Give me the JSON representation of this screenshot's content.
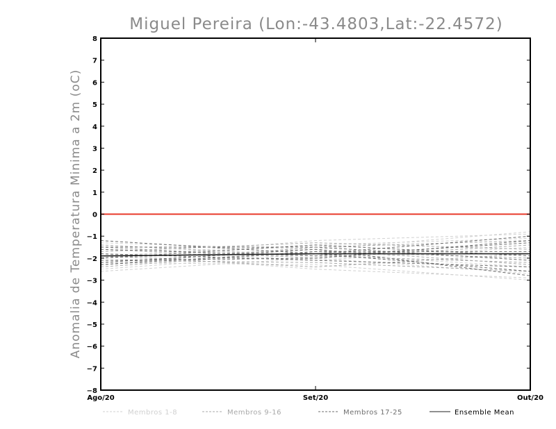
{
  "chart_data": {
    "type": "line",
    "title": "Miguel Pereira (Lon:-43.4803,Lat:-22.4572)",
    "xlabel": "",
    "ylabel": "Anomalia de Temperatura Minima a 2m (oC)",
    "categories": [
      "Ago/20",
      "Set/20",
      "Out/20"
    ],
    "ylim": [
      -8,
      8
    ],
    "yticks": [
      -8,
      -7,
      -6,
      -5,
      -4,
      -3,
      -2,
      -1,
      0,
      1,
      2,
      3,
      4,
      5,
      6,
      7,
      8
    ],
    "reference_line": {
      "value": 0,
      "color": "#e8382a"
    },
    "legend": [
      {
        "label": "Membros 1-8",
        "color": "#d0d0d0",
        "dash": "4,3"
      },
      {
        "label": "Membros 9-16",
        "color": "#a8a8a8",
        "dash": "4,3"
      },
      {
        "label": "Membros 17-25",
        "color": "#6e6e6e",
        "dash": "4,3"
      },
      {
        "label": "Ensemble Mean",
        "color": "#222222",
        "dash": ""
      }
    ],
    "series": [
      {
        "name": "Membro 1",
        "group": 0,
        "values": [
          -2.6,
          -2.0,
          -2.7
        ]
      },
      {
        "name": "Membro 2",
        "group": 0,
        "values": [
          -1.3,
          -1.6,
          -0.8
        ]
      },
      {
        "name": "Membro 3",
        "group": 0,
        "values": [
          -2.2,
          -2.3,
          -3.0
        ]
      },
      {
        "name": "Membro 4",
        "group": 0,
        "values": [
          -1.9,
          -1.4,
          -1.1
        ]
      },
      {
        "name": "Membro 5",
        "group": 0,
        "values": [
          -2.5,
          -1.8,
          -2.4
        ]
      },
      {
        "name": "Membro 6",
        "group": 0,
        "values": [
          -1.6,
          -2.1,
          -1.5
        ]
      },
      {
        "name": "Membro 7",
        "group": 0,
        "values": [
          -2.0,
          -1.2,
          -0.9
        ]
      },
      {
        "name": "Membro 8",
        "group": 0,
        "values": [
          -1.8,
          -2.5,
          -2.9
        ]
      },
      {
        "name": "Membro 9",
        "group": 1,
        "values": [
          -1.4,
          -1.9,
          -2.2
        ]
      },
      {
        "name": "Membro 10",
        "group": 1,
        "values": [
          -2.3,
          -1.5,
          -1.2
        ]
      },
      {
        "name": "Membro 11",
        "group": 1,
        "values": [
          -2.1,
          -2.2,
          -2.6
        ]
      },
      {
        "name": "Membro 12",
        "group": 1,
        "values": [
          -1.7,
          -1.3,
          -1.6
        ]
      },
      {
        "name": "Membro 13",
        "group": 1,
        "values": [
          -2.4,
          -1.7,
          -2.0
        ]
      },
      {
        "name": "Membro 14",
        "group": 1,
        "values": [
          -1.5,
          -2.0,
          -1.4
        ]
      },
      {
        "name": "Membro 15",
        "group": 1,
        "values": [
          -2.0,
          -1.6,
          -2.3
        ]
      },
      {
        "name": "Membro 16",
        "group": 1,
        "values": [
          -1.9,
          -2.4,
          -1.8
        ]
      },
      {
        "name": "Membro 17",
        "group": 2,
        "values": [
          -1.2,
          -1.8,
          -1.0
        ]
      },
      {
        "name": "Membro 18",
        "group": 2,
        "values": [
          -2.2,
          -1.6,
          -2.8
        ]
      },
      {
        "name": "Membro 19",
        "group": 2,
        "values": [
          -1.6,
          -1.9,
          -1.3
        ]
      },
      {
        "name": "Membro 20",
        "group": 2,
        "values": [
          -2.0,
          -1.4,
          -1.9
        ]
      },
      {
        "name": "Membro 21",
        "group": 2,
        "values": [
          -1.8,
          -2.1,
          -2.4
        ]
      },
      {
        "name": "Membro 22",
        "group": 2,
        "values": [
          -2.3,
          -1.7,
          -1.7
        ]
      },
      {
        "name": "Membro 23",
        "group": 2,
        "values": [
          -1.5,
          -1.5,
          -2.1
        ]
      },
      {
        "name": "Membro 24",
        "group": 2,
        "values": [
          -2.1,
          -2.0,
          -1.2
        ]
      },
      {
        "name": "Membro 25",
        "group": 2,
        "values": [
          -1.9,
          -1.8,
          -2.6
        ]
      },
      {
        "name": "Ensemble Mean",
        "group": 3,
        "values": [
          -1.9,
          -1.8,
          -1.8
        ]
      }
    ]
  }
}
